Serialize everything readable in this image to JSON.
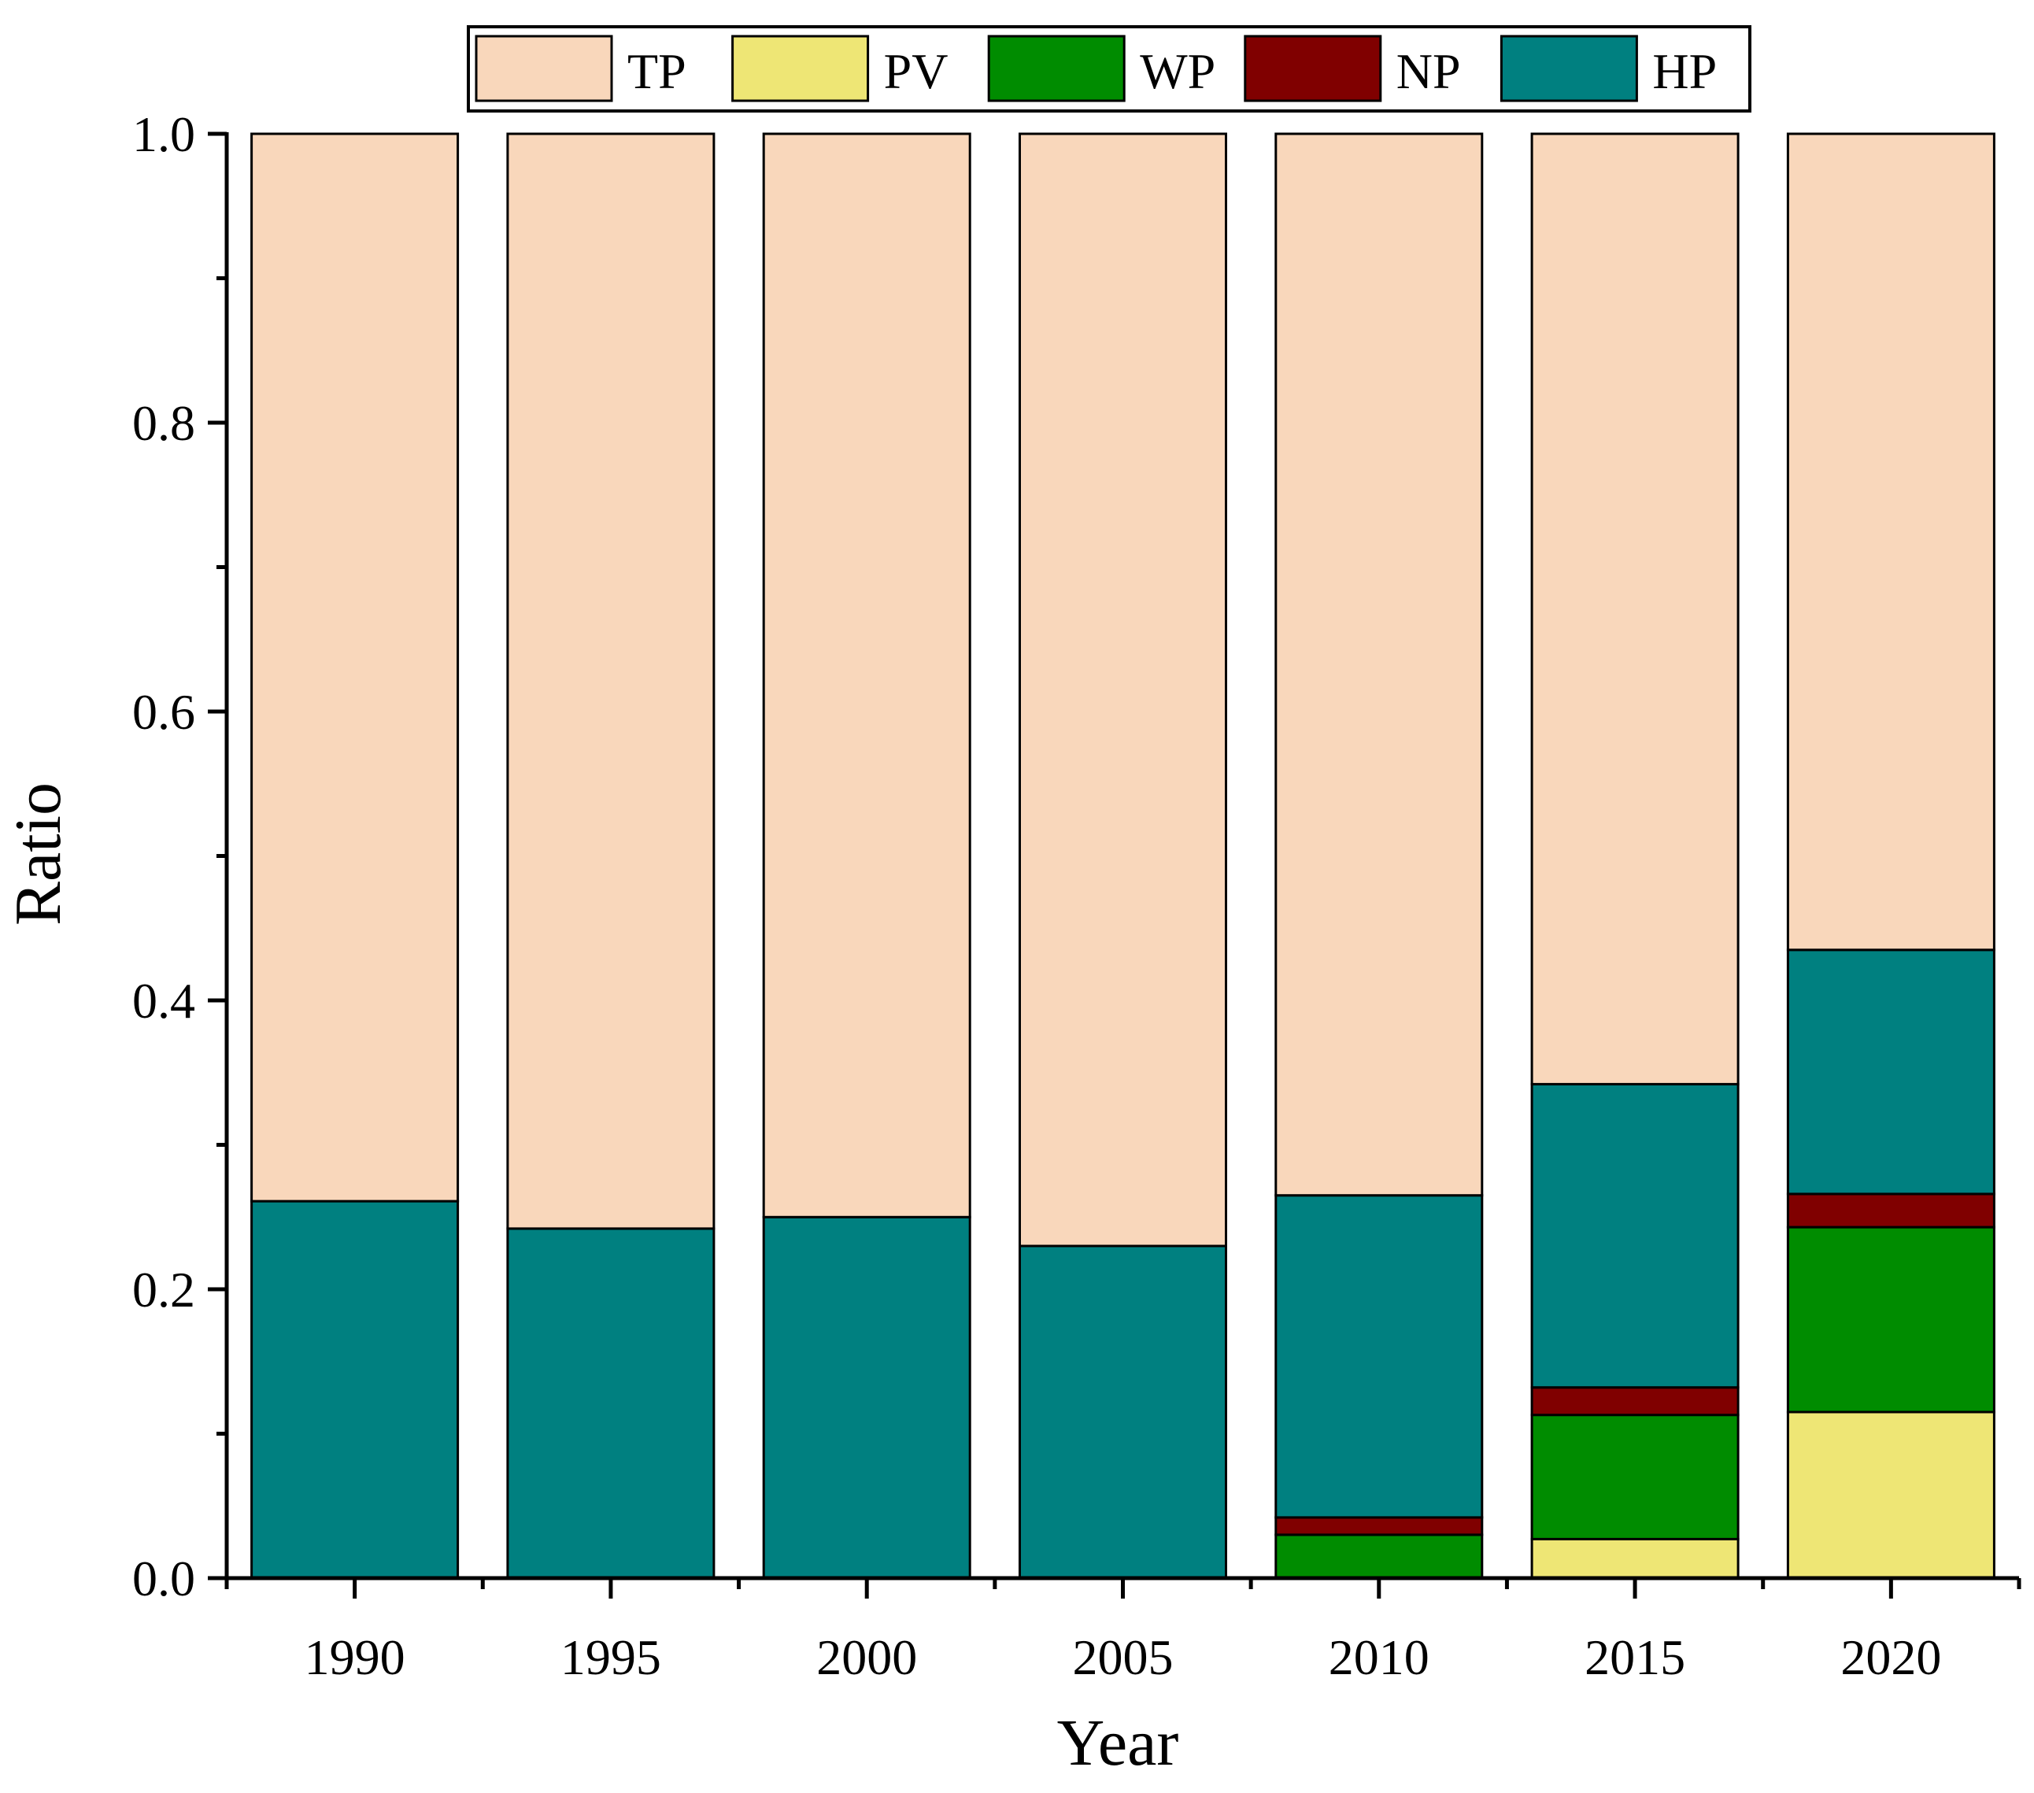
{
  "chart_data": {
    "type": "bar",
    "stacked": true,
    "xlabel": "Year",
    "ylabel": "Ratio",
    "ylim": [
      0,
      1.0
    ],
    "yticks": [
      "0.0",
      "0.2",
      "0.4",
      "0.6",
      "0.8",
      "1.0"
    ],
    "categories": [
      "1990",
      "1995",
      "2000",
      "2005",
      "2010",
      "2015",
      "2020"
    ],
    "legend_position": "top",
    "series": [
      {
        "name": "PV",
        "color": "#EEE675",
        "values": [
          0,
          0,
          0,
          0,
          0,
          0.027,
          0.115
        ]
      },
      {
        "name": "WP",
        "color": "#008C00",
        "values": [
          0,
          0,
          0,
          0,
          0.03,
          0.086,
          0.128
        ]
      },
      {
        "name": "NP",
        "color": "#800000",
        "values": [
          0,
          0,
          0,
          0,
          0.012,
          0.019,
          0.023
        ]
      },
      {
        "name": "HP",
        "color": "#008080",
        "values": [
          0.261,
          0.242,
          0.25,
          0.23,
          0.223,
          0.21,
          0.169
        ]
      },
      {
        "name": "TP",
        "color": "#F9D7BB",
        "values": [
          0.739,
          0.758,
          0.75,
          0.77,
          0.735,
          0.658,
          0.565
        ]
      }
    ],
    "legend_order": [
      "TP",
      "PV",
      "WP",
      "NP",
      "HP"
    ]
  }
}
